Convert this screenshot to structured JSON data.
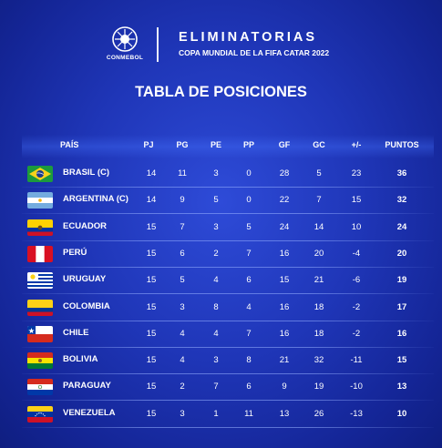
{
  "header": {
    "brand": "CONMEBOL",
    "title": "ELIMINATORIAS",
    "subtitle": "COPA MUNDIAL DE LA FIFA CATAR 2022"
  },
  "table": {
    "title": "TABLA DE POSICIONES",
    "columns": [
      "PAÍS",
      "PJ",
      "PG",
      "PE",
      "PP",
      "GF",
      "GC",
      "+/-",
      "PUNTOS"
    ],
    "rows": [
      {
        "team": "BRASIL (C)",
        "flag": "brazil-flag-icon",
        "pj": "14",
        "pg": "11",
        "pe": "3",
        "pp": "0",
        "gf": "28",
        "gc": "5",
        "dif": "23",
        "pts": "36"
      },
      {
        "team": "ARGENTINA (C)",
        "flag": "argentina-flag-icon",
        "pj": "14",
        "pg": "9",
        "pe": "5",
        "pp": "0",
        "gf": "22",
        "gc": "7",
        "dif": "15",
        "pts": "32"
      },
      {
        "team": "ECUADOR",
        "flag": "ecuador-flag-icon",
        "pj": "15",
        "pg": "7",
        "pe": "3",
        "pp": "5",
        "gf": "24",
        "gc": "14",
        "dif": "10",
        "pts": "24"
      },
      {
        "team": "PERÚ",
        "flag": "peru-flag-icon",
        "pj": "15",
        "pg": "6",
        "pe": "2",
        "pp": "7",
        "gf": "16",
        "gc": "20",
        "dif": "-4",
        "pts": "20"
      },
      {
        "team": "URUGUAY",
        "flag": "uruguay-flag-icon",
        "pj": "15",
        "pg": "5",
        "pe": "4",
        "pp": "6",
        "gf": "15",
        "gc": "21",
        "dif": "-6",
        "pts": "19"
      },
      {
        "team": "COLOMBIA",
        "flag": "colombia-flag-icon",
        "pj": "15",
        "pg": "3",
        "pe": "8",
        "pp": "4",
        "gf": "16",
        "gc": "18",
        "dif": "-2",
        "pts": "17"
      },
      {
        "team": "CHILE",
        "flag": "chile-flag-icon",
        "pj": "15",
        "pg": "4",
        "pe": "4",
        "pp": "7",
        "gf": "16",
        "gc": "18",
        "dif": "-2",
        "pts": "16"
      },
      {
        "team": "BOLIVIA",
        "flag": "bolivia-flag-icon",
        "pj": "15",
        "pg": "4",
        "pe": "3",
        "pp": "8",
        "gf": "21",
        "gc": "32",
        "dif": "-11",
        "pts": "15"
      },
      {
        "team": "PARAGUAY",
        "flag": "paraguay-flag-icon",
        "pj": "15",
        "pg": "2",
        "pe": "7",
        "pp": "6",
        "gf": "9",
        "gc": "19",
        "dif": "-10",
        "pts": "13"
      },
      {
        "team": "VENEZUELA",
        "flag": "venezuela-flag-icon",
        "pj": "15",
        "pg": "3",
        "pe": "1",
        "pp": "11",
        "gf": "13",
        "gc": "26",
        "dif": "-13",
        "pts": "10"
      }
    ]
  },
  "colors": {
    "background": "#1f36b8",
    "text": "#ffffff"
  }
}
